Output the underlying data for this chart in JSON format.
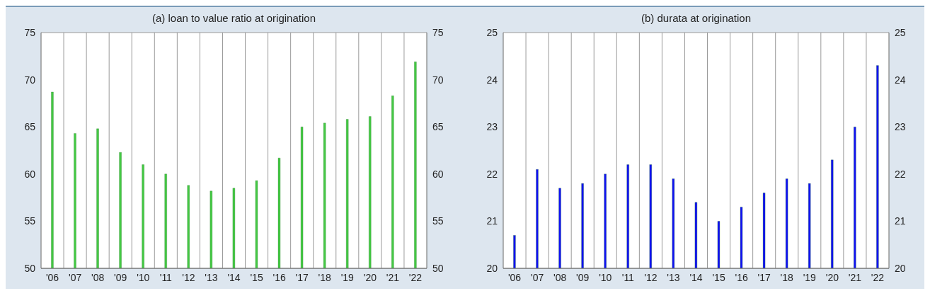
{
  "chart_data": [
    {
      "type": "bar",
      "title": "(a) loan to value ratio at origination",
      "categories": [
        "'06",
        "'07",
        "'08",
        "'09",
        "'10",
        "'11",
        "'12",
        "'13",
        "'14",
        "'15",
        "'16",
        "'17",
        "'18",
        "'19",
        "'20",
        "'21",
        "'22"
      ],
      "values": [
        68.7,
        64.3,
        64.8,
        62.3,
        61.0,
        60.0,
        58.8,
        58.2,
        58.5,
        59.3,
        61.7,
        65.0,
        65.4,
        65.8,
        66.1,
        68.3,
        71.9
      ],
      "color": "#44c944",
      "ylim": [
        50,
        75
      ],
      "yticks": [
        50,
        55,
        60,
        65,
        70,
        75
      ],
      "y2lim": [
        50,
        75
      ],
      "y2ticks": [
        50,
        55,
        60,
        65,
        70,
        75
      ],
      "grid": true
    },
    {
      "type": "bar",
      "title": "(b) durata at origination",
      "categories": [
        "'06",
        "'07",
        "'08",
        "'09",
        "'10",
        "'11",
        "'12",
        "'13",
        "'14",
        "'15",
        "'16",
        "'17",
        "'18",
        "'19",
        "'20",
        "'21",
        "'22"
      ],
      "values": [
        20.7,
        22.1,
        21.7,
        21.8,
        22.0,
        22.2,
        22.2,
        21.9,
        21.4,
        21.0,
        21.3,
        21.6,
        21.9,
        21.8,
        22.3,
        23.0,
        24.3
      ],
      "color": "#1010f5",
      "ylim": [
        20,
        25
      ],
      "yticks": [
        20,
        21,
        22,
        23,
        24,
        25
      ],
      "y2lim": [
        20,
        25
      ],
      "y2ticks": [
        20,
        21,
        22,
        23,
        24,
        25
      ],
      "grid": true
    }
  ]
}
